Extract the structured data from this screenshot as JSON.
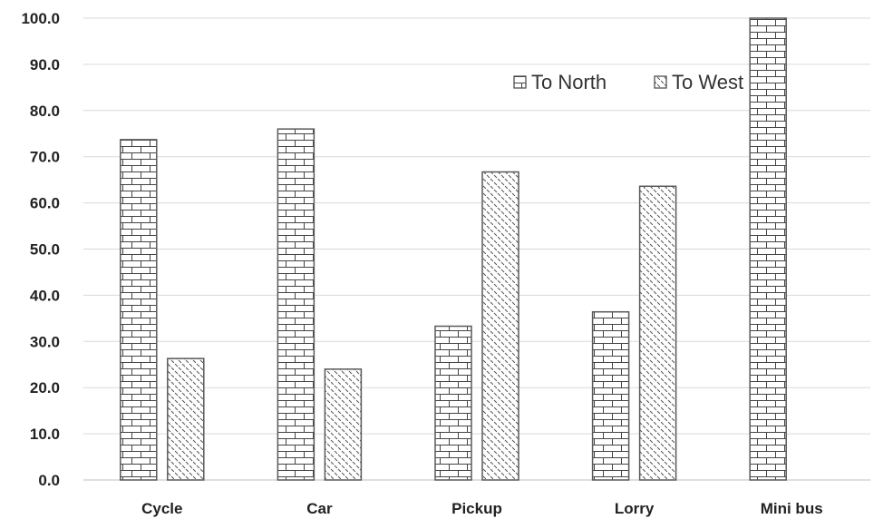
{
  "chart_data": {
    "type": "bar",
    "categories": [
      "Cycle",
      "Car",
      "Pickup",
      "Lorry",
      "Mini bus"
    ],
    "series": [
      {
        "name": "To North",
        "values": [
          73.7,
          76.0,
          33.3,
          36.4,
          100.0
        ],
        "pattern": "brick"
      },
      {
        "name": "To West",
        "values": [
          26.3,
          24.0,
          66.7,
          63.6,
          0.0
        ],
        "pattern": "diagonal-dash"
      }
    ],
    "ylim": [
      0,
      100
    ],
    "yticks": [
      "0.0",
      "10.0",
      "20.0",
      "30.0",
      "40.0",
      "50.0",
      "60.0",
      "70.0",
      "80.0",
      "90.0",
      "100.0"
    ],
    "grid": true,
    "legend_position": "top-right",
    "colors": {
      "grid": "#d9d9d9",
      "outline": "#595959",
      "text": "#222222"
    }
  }
}
